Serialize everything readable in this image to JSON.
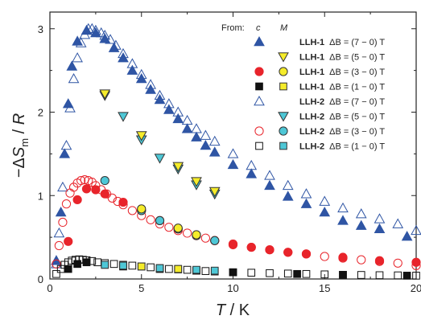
{
  "chart_data": {
    "type": "scatter",
    "xlabel": "T / K",
    "ylabel": "−ΔS_m / R",
    "xlim": [
      0,
      20
    ],
    "ylim": [
      0,
      3.2
    ],
    "x_ticks": [
      0,
      5,
      10,
      15,
      20
    ],
    "y_ticks": [
      0,
      1,
      2,
      3
    ],
    "grid": false,
    "legend_placement": "top-right",
    "legend_header": {
      "from": "From:",
      "col_c": "c",
      "col_m": "M"
    },
    "legend_entries": [
      {
        "name": "LLH-1",
        "field": "ΔB = (7 − 0) T"
      },
      {
        "name": "LLH-1",
        "field": "ΔB = (5 − 0) T"
      },
      {
        "name": "LLH-1",
        "field": "ΔB = (3 − 0) T"
      },
      {
        "name": "LLH-1",
        "field": "ΔB = (1 − 0) T"
      },
      {
        "name": "LLH-2",
        "field": "ΔB = (7 − 0) T"
      },
      {
        "name": "LLH-2",
        "field": "ΔB = (5 − 0) T"
      },
      {
        "name": "LLH-2",
        "field": "ΔB = (3 − 0) T"
      },
      {
        "name": "LLH-2",
        "field": "ΔB = (1 − 0) T"
      }
    ],
    "series": [
      {
        "id": "llh1_7T_c",
        "source": "c",
        "marker": "triangle-up",
        "fill": "#2f55a4",
        "stroke": "#2f55a4",
        "x": [
          0.35,
          0.6,
          0.8,
          1.0,
          1.2,
          1.5,
          2.0,
          2.5,
          3.0,
          3.5,
          4.0,
          4.5,
          5.0,
          5.5,
          6.0,
          6.5,
          7.0,
          7.5,
          8.0,
          8.5,
          9.0,
          10.0,
          11.0,
          12.0,
          13.0,
          14.0,
          15.0,
          16.0,
          17.0,
          18.0,
          19.5
        ],
        "y": [
          0.22,
          0.8,
          1.5,
          2.1,
          2.55,
          2.85,
          2.98,
          2.95,
          2.88,
          2.77,
          2.65,
          2.5,
          2.4,
          2.27,
          2.15,
          2.03,
          1.92,
          1.8,
          1.7,
          1.6,
          1.52,
          1.37,
          1.26,
          1.12,
          0.99,
          0.9,
          0.8,
          0.7,
          0.64,
          0.6,
          0.51
        ]
      },
      {
        "id": "llh2_7T_c",
        "source": "c",
        "marker": "triangle-up-open",
        "fill": "none",
        "stroke": "#2f55a4",
        "x": [
          0.35,
          0.5,
          0.7,
          0.9,
          1.1,
          1.3,
          1.5,
          1.7,
          1.9,
          2.1,
          2.3,
          2.5,
          2.8,
          3.0,
          3.3,
          3.6,
          4.0,
          4.5,
          5.0,
          5.5,
          6.0,
          6.5,
          7.0,
          7.5,
          8.0,
          8.5,
          9.0,
          10.0,
          11.0,
          12.0,
          13.0,
          14.0,
          15.0,
          16.0,
          17.0,
          18.0,
          19.0,
          20.0
        ],
        "y": [
          0.18,
          0.55,
          1.1,
          1.6,
          2.05,
          2.4,
          2.65,
          2.83,
          2.93,
          3.0,
          3.0,
          2.98,
          2.95,
          2.92,
          2.87,
          2.8,
          2.7,
          2.58,
          2.45,
          2.33,
          2.2,
          2.1,
          2.0,
          1.9,
          1.8,
          1.72,
          1.65,
          1.5,
          1.36,
          1.24,
          1.12,
          1.02,
          0.93,
          0.85,
          0.78,
          0.72,
          0.66,
          0.58
        ]
      },
      {
        "id": "llh2_5T_m",
        "source": "M",
        "marker": "triangle-down",
        "fill": "#4ec7d6",
        "stroke": "#333333",
        "x": [
          3.0,
          4.0,
          5.0,
          6.0,
          7.0,
          8.0,
          9.0
        ],
        "y": [
          2.2,
          1.95,
          1.67,
          1.45,
          1.32,
          1.13,
          1.02
        ]
      },
      {
        "id": "llh1_5T_m",
        "source": "M",
        "marker": "triangle-down",
        "fill": "#f5ec2a",
        "stroke": "#333333",
        "x": [
          3.0,
          5.0,
          7.0,
          8.0,
          9.0
        ],
        "y": [
          2.22,
          1.72,
          1.35,
          1.17,
          1.05
        ]
      },
      {
        "id": "llh1_3T_c",
        "source": "c",
        "marker": "circle",
        "fill": "#e8242b",
        "stroke": "#e8242b",
        "x": [
          1.0,
          1.5,
          2.0,
          2.5,
          3.0,
          4.0,
          5.0,
          6.0,
          7.0,
          8.0,
          9.0,
          10.0,
          11.0,
          12.0,
          13.0,
          14.0,
          16.0,
          18.0,
          20.0
        ],
        "y": [
          0.45,
          0.95,
          1.08,
          1.07,
          1.02,
          0.92,
          0.82,
          0.7,
          0.6,
          0.52,
          0.46,
          0.41,
          0.38,
          0.35,
          0.32,
          0.3,
          0.26,
          0.22,
          0.2
        ]
      },
      {
        "id": "llh2_3T_c",
        "source": "c",
        "marker": "circle-open",
        "fill": "none",
        "stroke": "#e8242b",
        "x": [
          0.35,
          0.5,
          0.7,
          0.9,
          1.1,
          1.3,
          1.5,
          1.7,
          1.9,
          2.1,
          2.3,
          2.5,
          2.8,
          3.1,
          3.4,
          3.7,
          4.0,
          4.5,
          5.0,
          5.5,
          6.0,
          6.5,
          7.0,
          7.5,
          8.0,
          8.5,
          9.0,
          10.0,
          11.0,
          12.0,
          13.0,
          14.0,
          15.0,
          16.0,
          17.0,
          18.0,
          19.0,
          20.0
        ],
        "y": [
          0.18,
          0.4,
          0.68,
          0.9,
          1.03,
          1.1,
          1.15,
          1.18,
          1.19,
          1.18,
          1.16,
          1.12,
          1.07,
          1.02,
          0.97,
          0.93,
          0.89,
          0.82,
          0.76,
          0.71,
          0.66,
          0.62,
          0.58,
          0.55,
          0.52,
          0.49,
          0.46,
          0.42,
          0.38,
          0.35,
          0.32,
          0.3,
          0.27,
          0.25,
          0.23,
          0.21,
          0.19,
          0.16
        ]
      },
      {
        "id": "llh2_3T_m",
        "source": "M",
        "marker": "circle",
        "fill": "#4ec7d6",
        "stroke": "#333333",
        "x": [
          3.0,
          5.0,
          6.0,
          7.0,
          8.0,
          9.0
        ],
        "y": [
          1.18,
          0.82,
          0.7,
          0.6,
          0.52,
          0.46
        ]
      },
      {
        "id": "llh1_3T_m",
        "source": "M",
        "marker": "circle",
        "fill": "#f5ec2a",
        "stroke": "#333333",
        "x": [
          5.0,
          7.0,
          8.0
        ],
        "y": [
          0.84,
          0.61,
          0.53
        ]
      },
      {
        "id": "llh1_1T_c",
        "source": "c",
        "marker": "square",
        "fill": "#111111",
        "stroke": "#111111",
        "x": [
          1.0,
          1.5,
          2.0,
          3.0,
          4.0,
          6.0,
          8.0,
          10.0,
          13.5,
          16.0,
          19.5
        ],
        "y": [
          0.12,
          0.18,
          0.2,
          0.17,
          0.15,
          0.12,
          0.1,
          0.08,
          0.06,
          0.05,
          0.04
        ]
      },
      {
        "id": "llh2_1T_c",
        "source": "c",
        "marker": "square-open",
        "fill": "none",
        "stroke": "#111111",
        "x": [
          0.35,
          0.6,
          0.8,
          1.0,
          1.2,
          1.4,
          1.6,
          1.8,
          2.0,
          2.3,
          2.6,
          3.0,
          3.5,
          4.0,
          4.5,
          5.0,
          5.5,
          6.0,
          6.5,
          7.0,
          7.5,
          8.0,
          8.5,
          9.0,
          10.0,
          11.0,
          12.0,
          13.0,
          14.0,
          15.0,
          16.0,
          17.0,
          18.0,
          19.0,
          20.0
        ],
        "y": [
          0.06,
          0.12,
          0.17,
          0.2,
          0.22,
          0.23,
          0.235,
          0.23,
          0.225,
          0.215,
          0.2,
          0.19,
          0.18,
          0.17,
          0.16,
          0.15,
          0.14,
          0.13,
          0.12,
          0.115,
          0.11,
          0.1,
          0.095,
          0.09,
          0.08,
          0.075,
          0.07,
          0.065,
          0.06,
          0.055,
          0.05,
          0.048,
          0.045,
          0.043,
          0.04
        ]
      },
      {
        "id": "llh2_1T_m",
        "source": "M",
        "marker": "square",
        "fill": "#4ec7d6",
        "stroke": "#333333",
        "x": [
          3.0,
          4.0,
          5.0,
          6.0,
          7.0,
          8.0,
          9.0
        ],
        "y": [
          0.17,
          0.16,
          0.15,
          0.13,
          0.12,
          0.11,
          0.1
        ]
      },
      {
        "id": "llh1_1T_m",
        "source": "M",
        "marker": "square",
        "fill": "#f5ec2a",
        "stroke": "#333333",
        "x": [
          5.0,
          7.0
        ],
        "y": [
          0.15,
          0.12
        ]
      }
    ],
    "legend_markers": [
      {
        "c": {
          "marker": "triangle-up",
          "fill": "#2f55a4",
          "stroke": "#2f55a4"
        },
        "m": null
      },
      {
        "c": null,
        "m": {
          "marker": "triangle-down",
          "fill": "#f5ec2a",
          "stroke": "#333333"
        }
      },
      {
        "c": {
          "marker": "circle",
          "fill": "#e8242b",
          "stroke": "#e8242b"
        },
        "m": {
          "marker": "circle",
          "fill": "#f5ec2a",
          "stroke": "#333333"
        }
      },
      {
        "c": {
          "marker": "square",
          "fill": "#111111",
          "stroke": "#111111"
        },
        "m": {
          "marker": "square",
          "fill": "#f5ec2a",
          "stroke": "#333333"
        }
      },
      {
        "c": {
          "marker": "triangle-up-open",
          "fill": "none",
          "stroke": "#2f55a4"
        },
        "m": null
      },
      {
        "c": null,
        "m": {
          "marker": "triangle-down",
          "fill": "#4ec7d6",
          "stroke": "#333333"
        }
      },
      {
        "c": {
          "marker": "circle-open",
          "fill": "none",
          "stroke": "#e8242b"
        },
        "m": {
          "marker": "circle",
          "fill": "#4ec7d6",
          "stroke": "#333333"
        }
      },
      {
        "c": {
          "marker": "square-open",
          "fill": "none",
          "stroke": "#111111"
        },
        "m": {
          "marker": "square",
          "fill": "#4ec7d6",
          "stroke": "#333333"
        }
      }
    ]
  }
}
